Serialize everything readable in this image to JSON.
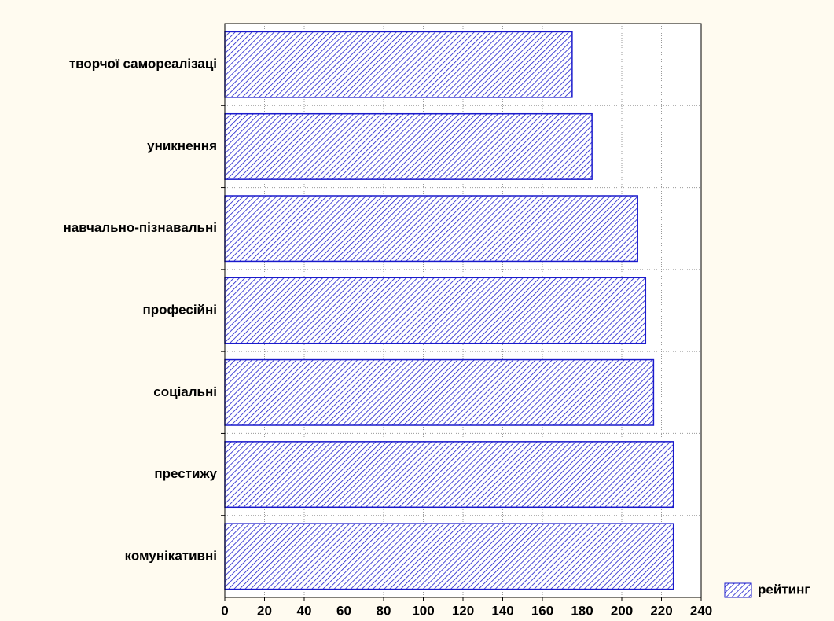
{
  "chart_data": {
    "type": "barh",
    "categories": [
      "творчої самореалізаці",
      "уникнення",
      "навчально-пізнавальні",
      "професійні",
      "соціальні",
      "престижу",
      "комунікативні"
    ],
    "series": [
      {
        "name": "рейтинг",
        "color": "#1a1acc",
        "values": [
          175,
          185,
          208,
          212,
          216,
          226,
          226
        ]
      }
    ],
    "xlim": [
      0,
      240
    ],
    "xticks": [
      0,
      20,
      40,
      60,
      80,
      100,
      120,
      140,
      160,
      180,
      200,
      220,
      240
    ],
    "grid": true,
    "legend": "bottom-right"
  }
}
